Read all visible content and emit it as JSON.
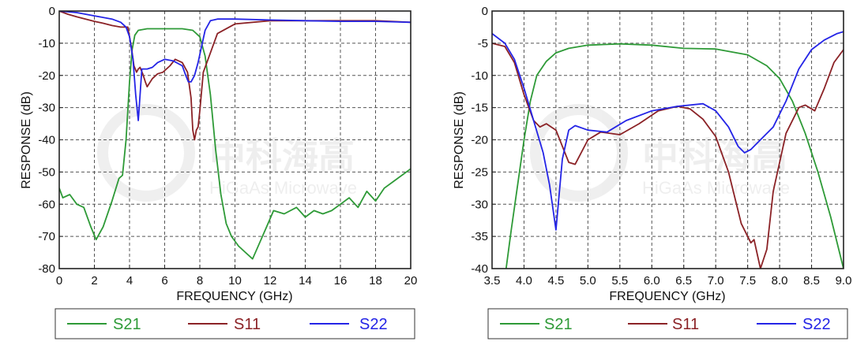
{
  "colors": {
    "S21": "#2e9a37",
    "S11": "#8b2226",
    "S22": "#2424e6",
    "grid": "#555555",
    "frame": "#222222"
  },
  "watermark": {
    "text_cn": "中科海高",
    "text_en": "HiGaAs Microwave"
  },
  "chart_data": [
    {
      "type": "line",
      "xlabel": "FREQUENCY (GHz)",
      "ylabel": "RESPONSE (dB)",
      "xlim": [
        0,
        20
      ],
      "ylim": [
        -80,
        0
      ],
      "xticks": [
        0,
        2,
        4,
        6,
        8,
        10,
        12,
        14,
        16,
        18,
        20
      ],
      "xtick_labels": [
        "0",
        "2",
        "4",
        "6",
        "8",
        "10",
        "12",
        "14",
        "16",
        "18",
        "20"
      ],
      "yticks": [
        0,
        -10,
        -20,
        -30,
        -40,
        -50,
        -60,
        -70,
        -80
      ],
      "ytick_labels": [
        "0",
        "-10",
        "-20",
        "-30",
        "-40",
        "-50",
        "-60",
        "-70",
        "-80"
      ],
      "grid": true,
      "legend": "bottom",
      "series": [
        {
          "name": "S21",
          "x": [
            0,
            0.2,
            0.6,
            1.0,
            1.4,
            1.8,
            2.1,
            2.5,
            3.0,
            3.4,
            3.6,
            3.8,
            4.0,
            4.15,
            4.3,
            4.5,
            5.0,
            6.0,
            7.0,
            7.6,
            8.0,
            8.3,
            8.6,
            8.9,
            9.2,
            9.5,
            9.8,
            10.2,
            10.6,
            11.0,
            11.4,
            11.8,
            12.2,
            12.8,
            13.5,
            14.0,
            14.5,
            15.0,
            15.5,
            16.0,
            16.5,
            17.0,
            17.5,
            18.0,
            18.5,
            19.0,
            19.5,
            20.0
          ],
          "y": [
            -55,
            -58,
            -57,
            -60,
            -61,
            -67,
            -71,
            -67,
            -59,
            -52,
            -51,
            -40,
            -22,
            -12,
            -7.5,
            -6,
            -5.5,
            -5.5,
            -5.5,
            -6,
            -8,
            -14,
            -26,
            -43,
            -57,
            -66,
            -70,
            -73,
            -75,
            -77,
            -72,
            -67,
            -62,
            -63,
            -61,
            -64,
            -62,
            -63,
            -62,
            -60,
            -58,
            -61,
            -56,
            -59,
            -55,
            -53,
            -51,
            -49
          ]
        },
        {
          "name": "S11",
          "x": [
            0,
            0.5,
            1.0,
            1.5,
            2.0,
            2.5,
            3.0,
            3.5,
            3.9,
            4.1,
            4.25,
            4.4,
            4.5,
            4.6,
            4.75,
            4.9,
            5.0,
            5.3,
            5.6,
            5.9,
            6.3,
            6.6,
            7.0,
            7.3,
            7.5,
            7.6,
            7.7,
            7.8,
            7.9,
            8.0,
            8.2,
            8.4,
            8.6,
            9.0,
            10.0,
            12.0,
            14.0,
            16.0,
            18.0,
            20.0
          ],
          "y": [
            0,
            -1,
            -1.8,
            -2.5,
            -3.2,
            -3.8,
            -4.5,
            -5,
            -5,
            -11,
            -17,
            -19,
            -18,
            -17.5,
            -19.5,
            -22,
            -23.5,
            -21,
            -19.5,
            -19,
            -17,
            -15,
            -16,
            -19,
            -27,
            -37,
            -40,
            -37,
            -36,
            -31,
            -19,
            -16,
            -13,
            -7,
            -4,
            -3,
            -3,
            -3,
            -3,
            -3.5
          ]
        },
        {
          "name": "S22",
          "x": [
            0,
            1.0,
            2.0,
            3.0,
            3.5,
            3.8,
            4.0,
            4.2,
            4.35,
            4.5,
            4.7,
            5.0,
            5.3,
            5.6,
            6.0,
            6.5,
            7.0,
            7.2,
            7.35,
            7.5,
            7.7,
            7.9,
            8.1,
            8.3,
            8.6,
            9.0,
            9.5,
            10.0,
            12.0,
            14.0,
            16.0,
            18.0,
            20.0
          ],
          "y": [
            0,
            -0.5,
            -1.5,
            -2.5,
            -3.5,
            -5,
            -8,
            -15,
            -26,
            -34,
            -18,
            -18,
            -17.5,
            -16,
            -15,
            -15.5,
            -17,
            -20,
            -22,
            -22,
            -20,
            -16,
            -11,
            -6,
            -3,
            -2.5,
            -2.5,
            -2.5,
            -2.8,
            -3,
            -3.2,
            -3.2,
            -3.5
          ]
        }
      ]
    },
    {
      "type": "line",
      "xlabel": "FREQUENCY (GHz)",
      "ylabel": "RESPONSE (dB)",
      "xlim": [
        3.5,
        9.0
      ],
      "ylim": [
        -40,
        0
      ],
      "xticks": [
        3.5,
        4.0,
        4.5,
        5.0,
        5.5,
        6.0,
        6.5,
        7.0,
        7.5,
        8.0,
        8.5,
        9.0
      ],
      "xtick_labels": [
        "3.5",
        "4.0",
        "4.5",
        "5.0",
        "5.5",
        "6.0",
        "6.5",
        "7.0",
        "7.5",
        "8.0",
        "8.5",
        "9.0"
      ],
      "yticks": [
        0,
        -5,
        -10,
        -15,
        -20,
        -25,
        -30,
        -35,
        -40
      ],
      "ytick_labels": [
        "0",
        "-5",
        "-10",
        "-15",
        "-20",
        "-25",
        "-30",
        "-35",
        "-40"
      ],
      "grid": true,
      "legend": "bottom",
      "series": [
        {
          "name": "S21",
          "x": [
            3.72,
            3.8,
            3.9,
            4.0,
            4.1,
            4.2,
            4.35,
            4.5,
            4.7,
            5.0,
            5.5,
            6.0,
            6.5,
            7.0,
            7.5,
            7.8,
            8.0,
            8.2,
            8.4,
            8.6,
            8.8,
            9.0
          ],
          "y": [
            -40,
            -34,
            -27,
            -20,
            -14,
            -10,
            -7.8,
            -6.5,
            -5.8,
            -5.3,
            -5.1,
            -5.3,
            -5.8,
            -5.9,
            -6.8,
            -8.5,
            -10.5,
            -14,
            -19,
            -25,
            -32,
            -40
          ]
        },
        {
          "name": "S11",
          "x": [
            3.5,
            3.7,
            3.85,
            4.0,
            4.15,
            4.25,
            4.35,
            4.5,
            4.6,
            4.7,
            4.8,
            5.0,
            5.2,
            5.5,
            5.8,
            6.1,
            6.4,
            6.6,
            6.8,
            7.0,
            7.2,
            7.4,
            7.55,
            7.6,
            7.7,
            7.8,
            7.9,
            8.1,
            8.3,
            8.4,
            8.55,
            8.7,
            8.85,
            9.0
          ],
          "y": [
            -5,
            -5.5,
            -8,
            -13,
            -17,
            -18,
            -17.5,
            -18.5,
            -21,
            -23.5,
            -23.8,
            -20,
            -18.8,
            -19.2,
            -17.5,
            -15.5,
            -14.8,
            -15.2,
            -16.8,
            -19.5,
            -25,
            -33,
            -36,
            -35.5,
            -40,
            -37,
            -28,
            -19,
            -15,
            -14.6,
            -15.5,
            -12,
            -8,
            -6
          ]
        },
        {
          "name": "S22",
          "x": [
            3.5,
            3.7,
            3.85,
            4.0,
            4.15,
            4.3,
            4.4,
            4.5,
            4.6,
            4.7,
            4.8,
            5.0,
            5.3,
            5.6,
            6.0,
            6.4,
            6.8,
            7.0,
            7.2,
            7.35,
            7.45,
            7.55,
            7.7,
            7.9,
            8.1,
            8.3,
            8.5,
            8.7,
            8.9,
            9.0
          ],
          "y": [
            -3.5,
            -5,
            -7.5,
            -12,
            -17,
            -22,
            -27,
            -34,
            -23,
            -18.5,
            -17.8,
            -18.5,
            -18.8,
            -17,
            -15.5,
            -14.8,
            -14.4,
            -15.5,
            -18,
            -21,
            -22,
            -21.5,
            -20,
            -18,
            -14,
            -9,
            -6,
            -4.5,
            -3.5,
            -3.2
          ]
        }
      ]
    }
  ]
}
